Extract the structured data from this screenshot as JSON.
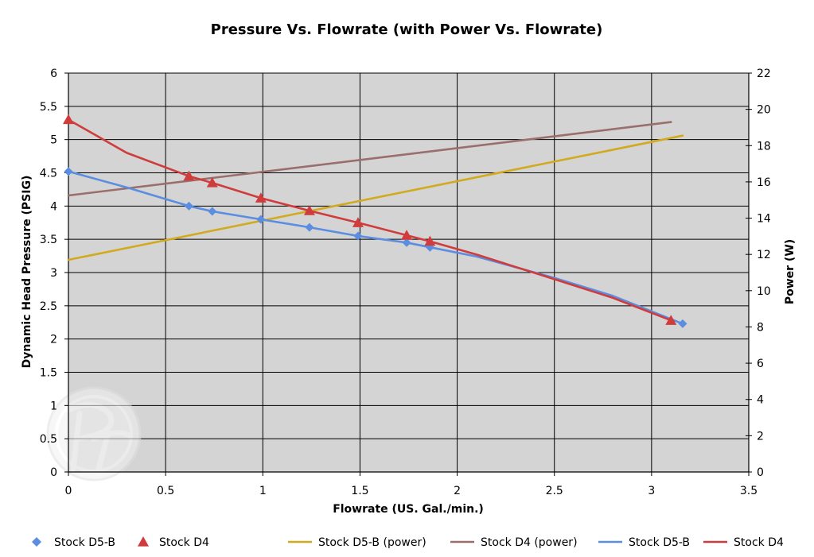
{
  "chart_data": {
    "type": "scatter",
    "title": "Pressure Vs. Flowrate (with Power Vs. Flowrate)",
    "xlabel": "Flowrate (US. Gal./min.)",
    "ylabel": "Dynamic Head Pressure (PSIG)",
    "y2label": "Power (W)",
    "xlim": [
      0,
      3.5
    ],
    "ylim": [
      0,
      6
    ],
    "y2lim": [
      0,
      22
    ],
    "xticks": [
      "0",
      "0.5",
      "1",
      "1.5",
      "2",
      "2.5",
      "3",
      "3.5"
    ],
    "yticks": [
      "0",
      "0.5",
      "1",
      "1.5",
      "2",
      "2.5",
      "3",
      "3.5",
      "4",
      "4.5",
      "5",
      "5.5",
      "6"
    ],
    "y2ticks": [
      "0",
      "2",
      "4",
      "6",
      "8",
      "10",
      "12",
      "14",
      "16",
      "18",
      "20",
      "22"
    ],
    "grid": true,
    "plot_background": "#d4d4d4",
    "legend_position": "bottom",
    "series": [
      {
        "name": "Stock D5-B",
        "kind": "markers",
        "marker": "diamond",
        "axis": "left",
        "color": "#5b8de0",
        "x": [
          0,
          0.62,
          0.74,
          0.99,
          1.24,
          1.49,
          1.74,
          1.86,
          3.16
        ],
        "y": [
          4.52,
          4.0,
          3.92,
          3.8,
          3.68,
          3.55,
          3.45,
          3.38,
          2.23
        ]
      },
      {
        "name": "Stock D4",
        "kind": "markers",
        "marker": "triangle",
        "axis": "left",
        "color": "#d03c3c",
        "x": [
          0,
          0.62,
          0.74,
          0.99,
          1.24,
          1.49,
          1.74,
          1.86,
          3.1
        ],
        "y": [
          5.3,
          4.45,
          4.35,
          4.12,
          3.93,
          3.75,
          3.56,
          3.47,
          2.28
        ]
      },
      {
        "name": "Stock D5-B (power)",
        "kind": "line",
        "axis": "right",
        "color": "#d1aa20",
        "x": [
          0,
          3.16
        ],
        "y": [
          11.7,
          18.55
        ]
      },
      {
        "name": "Stock D4 (power)",
        "kind": "line",
        "axis": "right",
        "color": "#9a6e6c",
        "x": [
          0,
          3.1
        ],
        "y": [
          15.25,
          19.3
        ]
      },
      {
        "name": "Stock D5-B",
        "kind": "line",
        "axis": "left",
        "color": "#5b8de0",
        "x": [
          0,
          0.3,
          0.62,
          0.74,
          0.99,
          1.24,
          1.49,
          1.74,
          1.86,
          2.1,
          2.5,
          2.8,
          3.16
        ],
        "y": [
          4.52,
          4.28,
          4.0,
          3.92,
          3.8,
          3.68,
          3.55,
          3.45,
          3.38,
          3.24,
          2.92,
          2.65,
          2.23
        ]
      },
      {
        "name": "Stock D4",
        "kind": "line",
        "axis": "left",
        "color": "#d03c3c",
        "x": [
          0,
          0.3,
          0.62,
          0.74,
          0.99,
          1.24,
          1.49,
          1.74,
          1.86,
          2.1,
          2.5,
          2.8,
          3.1
        ],
        "y": [
          5.3,
          4.8,
          4.45,
          4.35,
          4.12,
          3.93,
          3.75,
          3.56,
          3.47,
          3.27,
          2.9,
          2.62,
          2.28
        ]
      }
    ]
  }
}
